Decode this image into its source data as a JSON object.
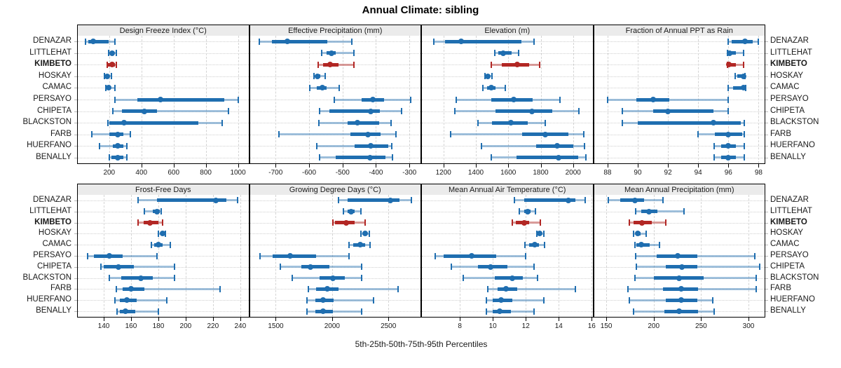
{
  "title": "Annual Climate: sibling",
  "caption": "5th-25th-50th-75th-95th Percentiles",
  "highlight_site": "KIMBETO",
  "colors": {
    "series_main": "#1f6eb0",
    "series_light": "rgba(31,110,176,0.42)",
    "highlight_main": "#b22724",
    "highlight_light": "rgba(178,39,36,0.45)",
    "header_bg": "#ebebeb",
    "panel_border": "#000000",
    "gridline": "#d4d4d4"
  },
  "chart_data": {
    "type": "scatter",
    "variant": "percentile-interval-dotplot",
    "percentile_levels": [
      5,
      25,
      50,
      75,
      95
    ],
    "legend_position": "none",
    "grid": true,
    "categories": [
      "DENAZAR",
      "LITTLEHAT",
      "KIMBETO",
      "HOSKAY",
      "CAMAC",
      "PERSAYO",
      "CHIPETA",
      "BLACKSTON",
      "FARB",
      "HUERFANO",
      "BENALLY"
    ],
    "panels": [
      {
        "title": "Design Freeze Index (°C)",
        "xlim": [
          5,
          1065
        ],
        "ticks": [
          200,
          400,
          600,
          800,
          1000
        ],
        "series": [
          [
            55,
            70,
            100,
            195,
            235
          ],
          [
            198,
            208,
            219,
            230,
            243
          ],
          [
            186,
            191,
            217,
            236,
            243
          ],
          [
            171,
            177,
            187,
            197,
            214
          ],
          [
            178,
            188,
            197,
            210,
            236
          ],
          [
            236,
            373,
            517,
            913,
            1000
          ],
          [
            222,
            279,
            420,
            495,
            943
          ],
          [
            193,
            201,
            294,
            755,
            900
          ],
          [
            92,
            200,
            251,
            287,
            330
          ],
          [
            142,
            222,
            251,
            287,
            308
          ],
          [
            200,
            214,
            255,
            290,
            308
          ]
        ]
      },
      {
        "title": "Effective Precipitation (mm)",
        "xlim": [
          -777,
          -267
        ],
        "ticks": [
          -700,
          -600,
          -500,
          -400,
          -300
        ],
        "series": [
          [
            -748,
            -710,
            -665,
            -545,
            -472
          ],
          [
            -562,
            -548,
            -534,
            -520,
            -466
          ],
          [
            -572,
            -558,
            -537,
            -512,
            -466
          ],
          [
            -586,
            -582,
            -575,
            -566,
            -552
          ],
          [
            -597,
            -577,
            -560,
            -548,
            -510
          ],
          [
            -524,
            -442,
            -410,
            -376,
            -296
          ],
          [
            -569,
            -540,
            -415,
            -388,
            -324
          ],
          [
            -570,
            -485,
            -455,
            -390,
            -356
          ],
          [
            -690,
            -477,
            -424,
            -386,
            -340
          ],
          [
            -578,
            -464,
            -415,
            -364,
            -352
          ],
          [
            -569,
            -520,
            -418,
            -372,
            -350
          ]
        ]
      },
      {
        "title": "Elevation (m)",
        "xlim": [
          1067,
          2120
        ],
        "ticks": [
          1200,
          1400,
          1600,
          1800,
          2000
        ],
        "series": [
          [
            1140,
            1210,
            1310,
            1680,
            1760
          ],
          [
            1515,
            1540,
            1570,
            1620,
            1665
          ],
          [
            1495,
            1560,
            1655,
            1730,
            1795
          ],
          [
            1455,
            1462,
            1474,
            1486,
            1500
          ],
          [
            1443,
            1471,
            1493,
            1521,
            1580
          ],
          [
            1280,
            1495,
            1635,
            1750,
            1920
          ],
          [
            1270,
            1520,
            1745,
            1870,
            2035
          ],
          [
            1415,
            1500,
            1615,
            1720,
            1830
          ],
          [
            1245,
            1685,
            1830,
            1970,
            2065
          ],
          [
            1435,
            1770,
            1900,
            2000,
            2070
          ],
          [
            1495,
            1650,
            1910,
            2030,
            2080
          ]
        ]
      },
      {
        "title": "Fraction of Annual PPT as Rain",
        "xlim": [
          87.1,
          98.4
        ],
        "ticks": [
          88,
          90,
          92,
          94,
          96,
          98
        ],
        "series": [
          [
            96.0,
            96.2,
            97.1,
            97.6,
            98.0
          ],
          [
            95.95,
            96.0,
            96.1,
            96.5,
            97.0
          ],
          [
            95.95,
            96.0,
            96.05,
            96.5,
            97.0
          ],
          [
            96.45,
            96.6,
            97.0,
            97.05,
            97.1
          ],
          [
            96.0,
            96.3,
            97.0,
            97.05,
            97.15
          ],
          [
            88.0,
            89.9,
            91.0,
            92.1,
            96.0
          ],
          [
            89.0,
            91.0,
            92.0,
            95.0,
            96.0
          ],
          [
            89.0,
            90.0,
            95.0,
            96.8,
            97.05
          ],
          [
            94.0,
            95.1,
            96.0,
            96.9,
            97.05
          ],
          [
            95.05,
            95.5,
            96.0,
            96.5,
            97.05
          ],
          [
            95.05,
            95.5,
            96.0,
            96.5,
            97.05
          ]
        ]
      },
      {
        "title": "Frost-Free Days",
        "xlim": [
          121,
          246
        ],
        "ticks": [
          140,
          160,
          180,
          200,
          220,
          240
        ],
        "series": [
          [
            165,
            179,
            222,
            230,
            238
          ],
          [
            170,
            176,
            179,
            181,
            182
          ],
          [
            165,
            169,
            174,
            180,
            183
          ],
          [
            180,
            181.5,
            183,
            184,
            185
          ],
          [
            175,
            177,
            180,
            183,
            189
          ],
          [
            128,
            133,
            144,
            154,
            179
          ],
          [
            138,
            140,
            151,
            162,
            192
          ],
          [
            144,
            153,
            167,
            176,
            192
          ],
          [
            149,
            154,
            160,
            170,
            225
          ],
          [
            148,
            152,
            157,
            164,
            186
          ],
          [
            150,
            152,
            156,
            163,
            180
          ]
        ]
      },
      {
        "title": "Growing Degree Days (°C)",
        "xlim": [
          1270,
          2785
        ],
        "ticks": [
          1500,
          2000,
          2500
        ],
        "series": [
          [
            2060,
            2140,
            2520,
            2600,
            2705
          ],
          [
            2100,
            2140,
            2172,
            2200,
            2255
          ],
          [
            2010,
            2025,
            2125,
            2200,
            2295
          ],
          [
            2255,
            2275,
            2295,
            2310,
            2330
          ],
          [
            2150,
            2190,
            2250,
            2295,
            2335
          ],
          [
            1360,
            1470,
            1630,
            1860,
            2150
          ],
          [
            1540,
            1725,
            1810,
            1975,
            2265
          ],
          [
            1645,
            1890,
            2005,
            2110,
            2265
          ],
          [
            1790,
            1860,
            1955,
            2060,
            2585
          ],
          [
            1780,
            1850,
            1920,
            2015,
            2370
          ],
          [
            1780,
            1850,
            1920,
            2005,
            2265
          ]
        ]
      },
      {
        "title": "Mean Annual Air Temperature (°C)",
        "xlim": [
          5.7,
          16.05
        ],
        "ticks": [
          8,
          10,
          12,
          14,
          16
        ],
        "series": [
          [
            11.3,
            11.9,
            14.6,
            15.0,
            15.6
          ],
          [
            11.6,
            11.9,
            12.1,
            12.3,
            12.6
          ],
          [
            11.2,
            11.4,
            11.9,
            12.2,
            12.9
          ],
          [
            12.65,
            12.75,
            12.85,
            12.95,
            13.1
          ],
          [
            11.95,
            12.2,
            12.55,
            12.8,
            13.15
          ],
          [
            6.5,
            7.0,
            8.7,
            10.2,
            12.0
          ],
          [
            7.5,
            9.1,
            9.85,
            10.9,
            12.5
          ],
          [
            8.2,
            10.1,
            11.2,
            11.8,
            12.7
          ],
          [
            9.7,
            10.3,
            10.8,
            11.5,
            15.0
          ],
          [
            9.6,
            10.0,
            10.5,
            11.2,
            13.1
          ],
          [
            9.6,
            10.0,
            10.4,
            11.1,
            12.5
          ]
        ]
      },
      {
        "title": "Mean Annual Precipitation (mm)",
        "xlim": [
          137,
          317
        ],
        "ticks": [
          150,
          200,
          250,
          300
        ],
        "series": [
          [
            152,
            165,
            180,
            190,
            210
          ],
          [
            181,
            187,
            195,
            204,
            232
          ],
          [
            174,
            179,
            188,
            198,
            213
          ],
          [
            179,
            181,
            183,
            186,
            192
          ],
          [
            180,
            182,
            187,
            196,
            206
          ],
          [
            181,
            203,
            225,
            246,
            307
          ],
          [
            182,
            213,
            230,
            246,
            312
          ],
          [
            180,
            200,
            227,
            253,
            308
          ],
          [
            173,
            210,
            229,
            247,
            308
          ],
          [
            174,
            213,
            229,
            246,
            262
          ],
          [
            179,
            211,
            227,
            247,
            264
          ]
        ]
      }
    ]
  }
}
